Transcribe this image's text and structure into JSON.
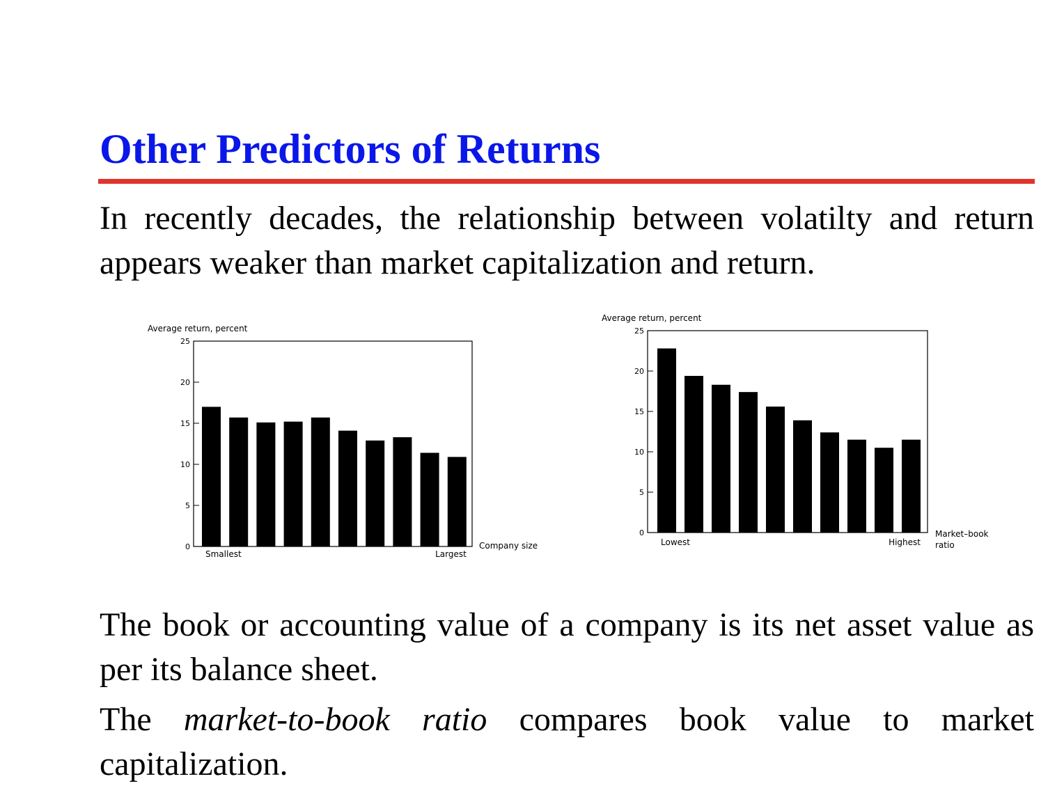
{
  "slide": {
    "title": "Other Predictors of Returns",
    "intro": "In recently decades, the relationship between volatilty and return appears weaker than market capitalization and return.",
    "book_value_text": "The book or accounting value of a company is its net asset value as per its balance sheet.",
    "mtb_prefix": "The ",
    "mtb_term": "market-to-book ratio",
    "mtb_suffix": " compares book value to market capitalization."
  },
  "colors": {
    "title": "#0a17e8",
    "rule": "#e0342a",
    "bars": "#000000"
  },
  "chart_data": [
    {
      "type": "bar",
      "ylabel": "Average return, percent",
      "xlabel": "Company size",
      "ylim": [
        0,
        25
      ],
      "yticks": [
        "0",
        "5",
        "10",
        "15",
        "20",
        "25"
      ],
      "category_labels": {
        "first": "Smallest",
        "last": "Largest"
      },
      "values": [
        17,
        15.7,
        15.1,
        15.2,
        15.7,
        14.1,
        12.9,
        13.3,
        11.4,
        10.9
      ],
      "grid": false
    },
    {
      "type": "bar",
      "ylabel": "Average return, percent",
      "xlabel": "Market–book ratio",
      "ylim": [
        0,
        25
      ],
      "yticks": [
        "0",
        "5",
        "10",
        "15",
        "20",
        "25"
      ],
      "category_labels": {
        "first": "Lowest",
        "last": "Highest"
      },
      "values": [
        22.8,
        19.4,
        18.3,
        17.4,
        15.6,
        13.9,
        12.4,
        11.5,
        10.5,
        11.5
      ],
      "grid": false
    }
  ]
}
